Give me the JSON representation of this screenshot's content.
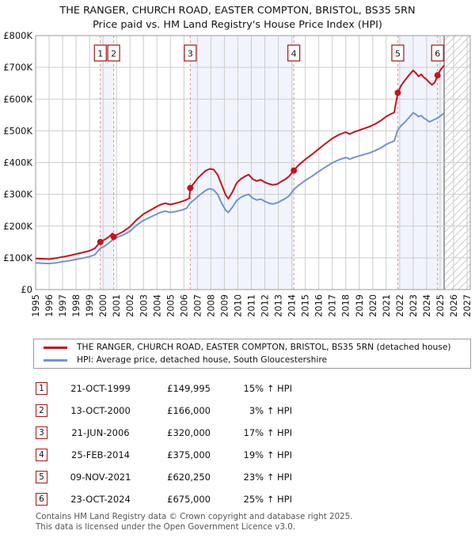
{
  "header": {
    "title": "THE RANGER, CHURCH ROAD, EASTER COMPTON, BRISTOL, BS35 5RN",
    "subtitle": "Price paid vs. HM Land Registry's House Price Index (HPI)"
  },
  "chart_data": {
    "type": "line",
    "title": "THE RANGER, CHURCH ROAD, EASTER COMPTON, BRISTOL, BS35 5RN",
    "subtitle": "Price paid vs. HM Land Registry's House Price Index (HPI)",
    "x_axis": {
      "start": 1995,
      "end": 2027,
      "ticks": [
        1995,
        1996,
        1997,
        1998,
        1999,
        2000,
        2001,
        2002,
        2003,
        2004,
        2005,
        2006,
        2007,
        2008,
        2009,
        2010,
        2011,
        2012,
        2013,
        2014,
        2015,
        2016,
        2017,
        2018,
        2019,
        2020,
        2021,
        2022,
        2023,
        2024,
        2025,
        2026,
        2027
      ]
    },
    "y_axis": {
      "min_k": 0,
      "max_k": 800,
      "step_k": 100,
      "tick_labels": [
        "£0",
        "£100K",
        "£200K",
        "£300K",
        "£400K",
        "£500K",
        "£600K",
        "£700K",
        "£800K"
      ]
    },
    "grid": true,
    "legend_position": "below",
    "series": [
      {
        "name": "THE RANGER, CHURCH ROAD, EASTER COMPTON, BRISTOL, BS35 5RN (detached house)",
        "color": "#c9111c",
        "points": [
          [
            1995,
            98
          ],
          [
            1995.5,
            97
          ],
          [
            1996,
            96
          ],
          [
            1996.5,
            99
          ],
          [
            1997,
            103
          ],
          [
            1997.5,
            107
          ],
          [
            1998,
            112
          ],
          [
            1998.5,
            117
          ],
          [
            1999,
            122
          ],
          [
            1999.4,
            130
          ],
          [
            1999.8,
            150
          ],
          [
            2000.1,
            157
          ],
          [
            2000.4,
            165
          ],
          [
            2000.7,
            177
          ],
          [
            2000.79,
            166
          ],
          [
            2001,
            172
          ],
          [
            2001.5,
            183
          ],
          [
            2002,
            198
          ],
          [
            2002.5,
            220
          ],
          [
            2003,
            238
          ],
          [
            2003.5,
            250
          ],
          [
            2004,
            262
          ],
          [
            2004.3,
            268
          ],
          [
            2004.6,
            272
          ],
          [
            2005,
            268
          ],
          [
            2005.4,
            272
          ],
          [
            2005.8,
            277
          ],
          [
            2006.2,
            283
          ],
          [
            2006.4,
            288
          ],
          [
            2006.47,
            320
          ],
          [
            2006.8,
            338
          ],
          [
            2007,
            350
          ],
          [
            2007.3,
            362
          ],
          [
            2007.6,
            374
          ],
          [
            2007.9,
            380
          ],
          [
            2008.2,
            378
          ],
          [
            2008.5,
            362
          ],
          [
            2008.8,
            330
          ],
          [
            2009.1,
            298
          ],
          [
            2009.3,
            286
          ],
          [
            2009.6,
            308
          ],
          [
            2009.9,
            335
          ],
          [
            2010.2,
            348
          ],
          [
            2010.5,
            356
          ],
          [
            2010.8,
            362
          ],
          [
            2011.1,
            348
          ],
          [
            2011.4,
            342
          ],
          [
            2011.7,
            346
          ],
          [
            2012,
            338
          ],
          [
            2012.3,
            333
          ],
          [
            2012.6,
            330
          ],
          [
            2012.9,
            332
          ],
          [
            2013.2,
            340
          ],
          [
            2013.5,
            347
          ],
          [
            2013.8,
            357
          ],
          [
            2014.15,
            375
          ],
          [
            2014.5,
            392
          ],
          [
            2015,
            410
          ],
          [
            2015.5,
            426
          ],
          [
            2016,
            443
          ],
          [
            2016.5,
            460
          ],
          [
            2017,
            476
          ],
          [
            2017.5,
            488
          ],
          [
            2018,
            496
          ],
          [
            2018.3,
            490
          ],
          [
            2018.6,
            496
          ],
          [
            2019,
            502
          ],
          [
            2019.4,
            508
          ],
          [
            2019.8,
            514
          ],
          [
            2020.2,
            522
          ],
          [
            2020.6,
            532
          ],
          [
            2021,
            545
          ],
          [
            2021.3,
            552
          ],
          [
            2021.6,
            558
          ],
          [
            2021.86,
            620
          ],
          [
            2022.1,
            642
          ],
          [
            2022.4,
            660
          ],
          [
            2022.7,
            676
          ],
          [
            2023,
            690
          ],
          [
            2023.2,
            682
          ],
          [
            2023.4,
            672
          ],
          [
            2023.6,
            678
          ],
          [
            2023.8,
            668
          ],
          [
            2024,
            662
          ],
          [
            2024.2,
            652
          ],
          [
            2024.4,
            645
          ],
          [
            2024.6,
            652
          ],
          [
            2024.81,
            675
          ],
          [
            2025,
            690
          ],
          [
            2025.3,
            706
          ]
        ]
      },
      {
        "name": "HPI: Average price, detached house, South Gloucestershire",
        "color": "#6f95ca",
        "points": [
          [
            1995,
            84
          ],
          [
            1995.5,
            83
          ],
          [
            1996,
            82
          ],
          [
            1996.5,
            84
          ],
          [
            1997,
            88
          ],
          [
            1997.5,
            91
          ],
          [
            1998,
            95
          ],
          [
            1998.5,
            99
          ],
          [
            1999,
            104
          ],
          [
            1999.4,
            110
          ],
          [
            1999.8,
            130
          ],
          [
            2000.1,
            136
          ],
          [
            2000.4,
            146
          ],
          [
            2000.7,
            156
          ],
          [
            2000.79,
            161
          ],
          [
            2001,
            164
          ],
          [
            2001.5,
            172
          ],
          [
            2002,
            184
          ],
          [
            2002.5,
            203
          ],
          [
            2003,
            218
          ],
          [
            2003.5,
            228
          ],
          [
            2004,
            238
          ],
          [
            2004.3,
            244
          ],
          [
            2004.6,
            247
          ],
          [
            2005,
            243
          ],
          [
            2005.4,
            246
          ],
          [
            2005.8,
            250
          ],
          [
            2006.2,
            256
          ],
          [
            2006.47,
            273
          ],
          [
            2006.8,
            284
          ],
          [
            2007,
            292
          ],
          [
            2007.3,
            302
          ],
          [
            2007.6,
            312
          ],
          [
            2007.9,
            318
          ],
          [
            2008.2,
            314
          ],
          [
            2008.5,
            300
          ],
          [
            2008.8,
            272
          ],
          [
            2009.1,
            250
          ],
          [
            2009.3,
            243
          ],
          [
            2009.6,
            260
          ],
          [
            2009.9,
            280
          ],
          [
            2010.2,
            290
          ],
          [
            2010.5,
            296
          ],
          [
            2010.8,
            300
          ],
          [
            2011.1,
            288
          ],
          [
            2011.4,
            282
          ],
          [
            2011.7,
            285
          ],
          [
            2012,
            278
          ],
          [
            2012.3,
            272
          ],
          [
            2012.6,
            270
          ],
          [
            2012.9,
            273
          ],
          [
            2013.2,
            280
          ],
          [
            2013.5,
            286
          ],
          [
            2013.8,
            295
          ],
          [
            2014.15,
            315
          ],
          [
            2014.5,
            328
          ],
          [
            2015,
            344
          ],
          [
            2015.5,
            357
          ],
          [
            2016,
            372
          ],
          [
            2016.5,
            386
          ],
          [
            2017,
            399
          ],
          [
            2017.5,
            409
          ],
          [
            2018,
            416
          ],
          [
            2018.3,
            411
          ],
          [
            2018.6,
            416
          ],
          [
            2019,
            421
          ],
          [
            2019.4,
            426
          ],
          [
            2019.8,
            431
          ],
          [
            2020.2,
            438
          ],
          [
            2020.6,
            446
          ],
          [
            2021,
            457
          ],
          [
            2021.3,
            463
          ],
          [
            2021.6,
            468
          ],
          [
            2021.86,
            503
          ],
          [
            2022.1,
            516
          ],
          [
            2022.4,
            528
          ],
          [
            2022.7,
            542
          ],
          [
            2023,
            557
          ],
          [
            2023.2,
            552
          ],
          [
            2023.4,
            545
          ],
          [
            2023.6,
            548
          ],
          [
            2023.8,
            540
          ],
          [
            2024,
            535
          ],
          [
            2024.2,
            528
          ],
          [
            2024.4,
            532
          ],
          [
            2024.6,
            536
          ],
          [
            2024.81,
            540
          ],
          [
            2025,
            546
          ],
          [
            2025.3,
            556
          ]
        ]
      }
    ],
    "sales": [
      {
        "n": "1",
        "year": 1999.8,
        "price_k": 150
      },
      {
        "n": "2",
        "year": 2000.79,
        "price_k": 166
      },
      {
        "n": "3",
        "year": 2006.47,
        "price_k": 320
      },
      {
        "n": "4",
        "year": 2014.15,
        "price_k": 375
      },
      {
        "n": "5",
        "year": 2021.86,
        "price_k": 620
      },
      {
        "n": "6",
        "year": 2024.81,
        "price_k": 675
      }
    ],
    "ownership_bands": [
      [
        1999.8,
        2000.79
      ],
      [
        2006.47,
        2014.15
      ],
      [
        2021.86,
        2025.3
      ]
    ],
    "future_start": 2025.3,
    "colors": {
      "price_line": "#c9111c",
      "hpi_line": "#6f95ca",
      "band_fill": "#f1f4fc",
      "grid": "#cccccc",
      "plot_border": "#9a9a9a",
      "dashed_sale_line": "#ec8a8a",
      "marker_box_border": "#aa1111",
      "hatch": "#cccccc",
      "hatch_edge": "#8c8c8c"
    }
  },
  "table": {
    "rows": [
      {
        "num": "1",
        "date": "21-OCT-1999",
        "price": "£149,995",
        "hpi": "15% ↑ HPI"
      },
      {
        "num": "2",
        "date": "13-OCT-2000",
        "price": "£166,000",
        "hpi": "3% ↑ HPI"
      },
      {
        "num": "3",
        "date": "21-JUN-2006",
        "price": "£320,000",
        "hpi": "17% ↑ HPI"
      },
      {
        "num": "4",
        "date": "25-FEB-2014",
        "price": "£375,000",
        "hpi": "19% ↑ HPI"
      },
      {
        "num": "5",
        "date": "09-NOV-2021",
        "price": "£620,250",
        "hpi": "23% ↑ HPI"
      },
      {
        "num": "6",
        "date": "23-OCT-2024",
        "price": "£675,000",
        "hpi": "25% ↑ HPI"
      }
    ]
  },
  "footer": {
    "line1": "Contains HM Land Registry data © Crown copyright and database right 2025.",
    "line2": "This data is licensed under the Open Government Licence v3.0."
  }
}
